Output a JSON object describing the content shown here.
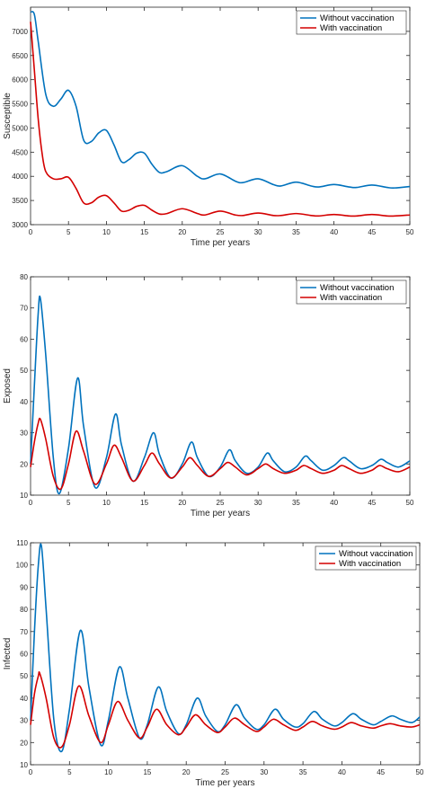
{
  "colors": {
    "without": "#0072BD",
    "with": "#D40000",
    "axis": "#262626"
  },
  "chart_data": [
    {
      "type": "line",
      "xlabel": "Time per years",
      "ylabel": "Susceptible",
      "xlim": [
        0,
        50
      ],
      "ylim": [
        3000,
        7500
      ],
      "xticks": [
        0,
        5,
        10,
        15,
        20,
        25,
        30,
        35,
        40,
        45,
        50
      ],
      "yticks": [
        3000,
        3500,
        4000,
        4500,
        5000,
        5500,
        6000,
        6500,
        7000
      ],
      "legend": "top-right",
      "series": [
        {
          "name": "Without vaccination",
          "color": "#0072BD",
          "x": [
            0,
            0.5,
            1,
            2,
            3,
            4,
            5,
            6,
            7,
            8,
            9,
            10,
            11,
            12,
            13,
            14,
            15,
            16,
            17,
            18,
            20,
            22,
            23,
            25,
            27,
            28,
            30,
            32,
            33,
            35,
            37,
            38,
            40,
            42,
            43,
            45,
            47,
            48,
            50
          ],
          "y": [
            7400,
            7350,
            6800,
            5700,
            5450,
            5600,
            5780,
            5450,
            4750,
            4720,
            4900,
            4950,
            4650,
            4300,
            4350,
            4480,
            4480,
            4250,
            4080,
            4100,
            4220,
            4000,
            3950,
            4050,
            3900,
            3870,
            3950,
            3830,
            3800,
            3880,
            3800,
            3780,
            3830,
            3780,
            3770,
            3820,
            3770,
            3760,
            3790
          ]
        },
        {
          "name": "With vaccination",
          "color": "#D40000",
          "x": [
            0,
            0.5,
            1,
            1.5,
            2,
            3,
            4,
            5,
            6,
            7,
            8,
            9,
            10,
            11,
            12,
            13,
            14,
            15,
            16,
            17,
            18,
            20,
            22,
            23,
            25,
            27,
            28,
            30,
            32,
            33,
            35,
            37,
            38,
            40,
            42,
            43,
            45,
            47,
            48,
            50
          ],
          "y": [
            7200,
            6200,
            5200,
            4500,
            4100,
            3950,
            3950,
            3980,
            3750,
            3450,
            3450,
            3570,
            3600,
            3450,
            3280,
            3300,
            3380,
            3400,
            3300,
            3220,
            3230,
            3330,
            3230,
            3200,
            3280,
            3200,
            3190,
            3240,
            3190,
            3190,
            3230,
            3190,
            3180,
            3210,
            3180,
            3180,
            3210,
            3180,
            3180,
            3200
          ]
        }
      ]
    },
    {
      "type": "line",
      "xlabel": "Time per years",
      "ylabel": "Exposed",
      "xlim": [
        0,
        50
      ],
      "ylim": [
        10,
        80
      ],
      "xticks": [
        0,
        5,
        10,
        15,
        20,
        25,
        30,
        35,
        40,
        45,
        50
      ],
      "yticks": [
        10,
        20,
        30,
        40,
        50,
        60,
        70,
        80
      ],
      "legend": "top-right",
      "series": [
        {
          "name": "Without vaccination",
          "color": "#0072BD",
          "x": [
            0,
            0.5,
            1,
            1.3,
            2,
            3,
            3.8,
            5,
            6.2,
            7,
            8.5,
            10,
            11.2,
            12,
            13.5,
            15,
            16.2,
            17,
            18.5,
            20,
            21.2,
            22,
            23.5,
            25,
            26.2,
            27,
            28.5,
            30,
            31.2,
            32,
            33.5,
            35,
            36.2,
            37,
            38.5,
            40,
            41.2,
            42,
            43.5,
            45,
            46.2,
            47,
            48.5,
            50
          ],
          "y": [
            20,
            45,
            68,
            73,
            55,
            22,
            10.5,
            25,
            47.5,
            32,
            12.5,
            22,
            36,
            26,
            14.5,
            22,
            30,
            23,
            15.5,
            20,
            27,
            22,
            16,
            19,
            24.5,
            21,
            17,
            19,
            23.5,
            21,
            17.5,
            19,
            22.5,
            21,
            18,
            19.5,
            22,
            21,
            18.5,
            19.5,
            21.5,
            20.5,
            19,
            21
          ]
        },
        {
          "name": "With vaccination",
          "color": "#D40000",
          "x": [
            0,
            0.5,
            1,
            1.3,
            2,
            3,
            4,
            5,
            6,
            7,
            8.5,
            10,
            11,
            12,
            13.5,
            15,
            16,
            17,
            18.5,
            20,
            21,
            22,
            23.5,
            25,
            26,
            27,
            28.5,
            30,
            31,
            32,
            33.5,
            35,
            36,
            37,
            38.5,
            40,
            41,
            42,
            43.5,
            45,
            46,
            47,
            48.5,
            50
          ],
          "y": [
            19,
            27,
            33,
            34.3,
            28,
            16,
            12,
            20,
            30.5,
            24,
            13.5,
            20,
            26,
            22,
            14.5,
            19.5,
            23.5,
            20,
            15.5,
            19,
            22,
            19.5,
            16,
            18.5,
            20.5,
            19,
            16.5,
            18.5,
            20,
            18.5,
            17,
            18,
            19.5,
            18.5,
            17,
            18,
            19.5,
            18.5,
            17,
            18,
            19.5,
            18.5,
            17.5,
            19
          ]
        }
      ]
    },
    {
      "type": "line",
      "xlabel": "Time per years",
      "ylabel": "Infected",
      "xlim": [
        0,
        50
      ],
      "ylim": [
        10,
        110
      ],
      "xticks": [
        0,
        5,
        10,
        15,
        20,
        25,
        30,
        35,
        40,
        45,
        50
      ],
      "yticks": [
        10,
        20,
        30,
        40,
        50,
        60,
        70,
        80,
        90,
        100,
        110
      ],
      "legend": "top-right",
      "series": [
        {
          "name": "Without vaccination",
          "color": "#0072BD",
          "x": [
            0,
            0.5,
            1,
            1.4,
            2,
            3,
            4,
            5,
            6.4,
            7.5,
            9,
            10,
            11.4,
            12.5,
            14,
            15,
            16.4,
            17.5,
            19,
            20,
            21.4,
            22.5,
            24,
            25,
            26.4,
            27.5,
            29,
            30,
            31.4,
            32.5,
            34,
            35,
            36.4,
            37.5,
            39,
            40,
            41.4,
            42.5,
            44,
            45,
            46.4,
            47.5,
            49,
            50
          ],
          "y": [
            30,
            70,
            100,
            108.5,
            80,
            30,
            16,
            35,
            70.5,
            45,
            19,
            30,
            54,
            40,
            22,
            28,
            45,
            34,
            24,
            28,
            40,
            32,
            25,
            28,
            37,
            31,
            26,
            28,
            35,
            30.5,
            27,
            28.5,
            34,
            30.5,
            27.5,
            29,
            33,
            30.5,
            28,
            29.5,
            32,
            30.5,
            29,
            31.5
          ]
        },
        {
          "name": "With vaccination",
          "color": "#D40000",
          "x": [
            0,
            0.5,
            1,
            1.2,
            2,
            3,
            4,
            5,
            6.2,
            7.5,
            9,
            10,
            11.2,
            12.5,
            14,
            15,
            16.2,
            17.5,
            19,
            20,
            21.2,
            22.5,
            24,
            25,
            26.2,
            27.5,
            29,
            30,
            31.2,
            32.5,
            34,
            35,
            36.2,
            37.5,
            39,
            40,
            41.2,
            42.5,
            44,
            45,
            46.2,
            47.5,
            49,
            50
          ],
          "y": [
            28,
            42,
            50,
            51,
            40,
            22,
            18,
            28,
            45.5,
            32,
            20,
            28,
            38.5,
            30,
            22,
            27,
            35,
            28,
            23.5,
            27,
            32.5,
            28,
            24.5,
            27,
            31,
            28,
            25,
            27,
            30.5,
            28,
            25.5,
            27,
            29.5,
            27.5,
            26,
            27,
            29,
            27.5,
            26.5,
            27.5,
            28.5,
            27.5,
            27,
            28
          ]
        }
      ]
    }
  ]
}
